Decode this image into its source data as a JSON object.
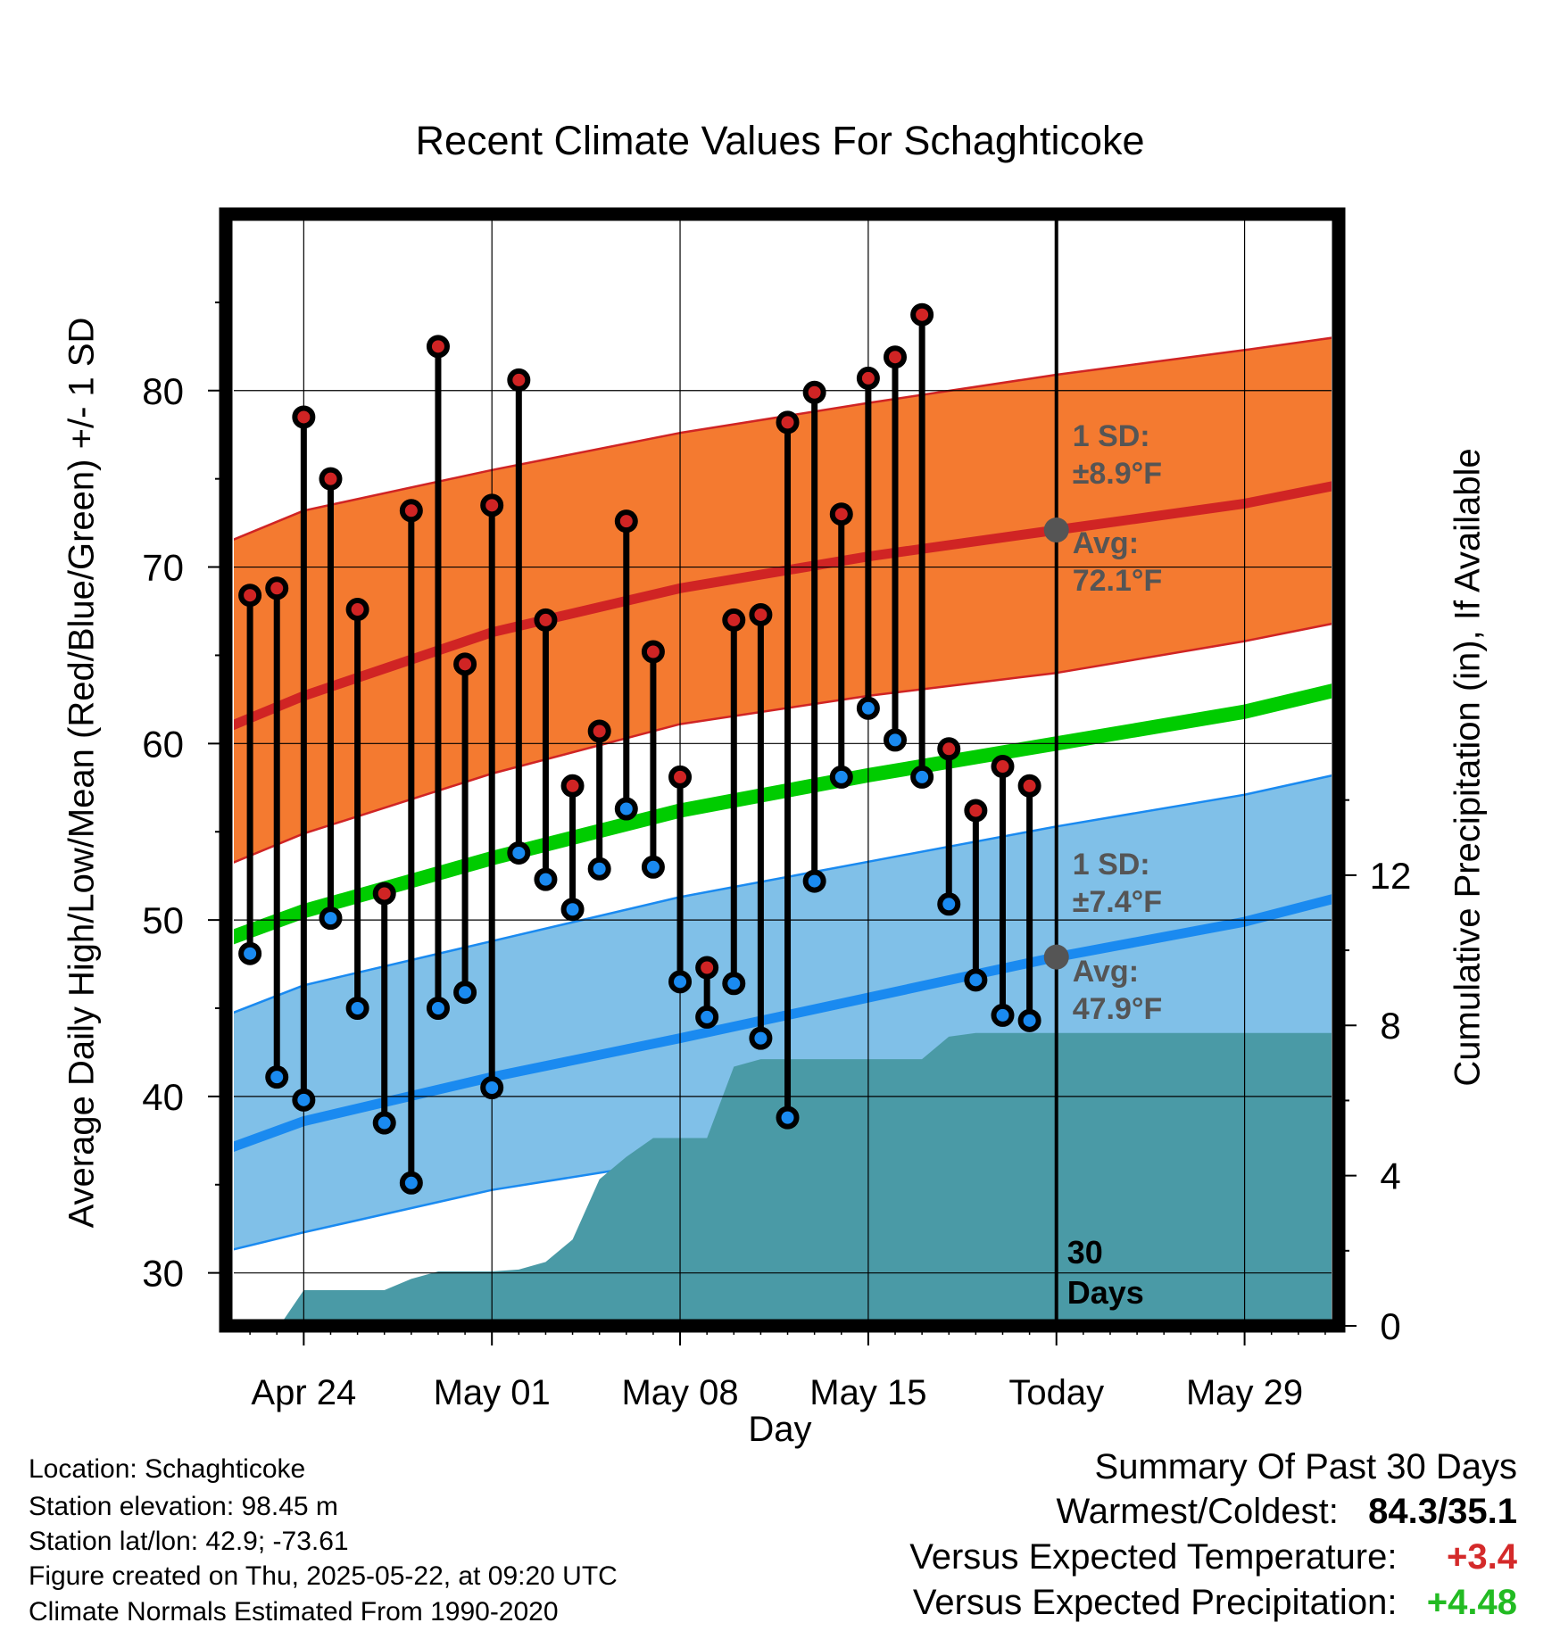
{
  "chart_data": {
    "type": "line",
    "title": "Recent Climate Values For Schaghticoke",
    "xlabel": "Day",
    "ylabel": "Average Daily High/Low/Mean (Red/Blue/Green) +/- 1 SD",
    "y2label": "Cumulative Precipitation (in), If Available",
    "ylim": [
      27,
      90
    ],
    "y2lim": [
      0,
      29.6
    ],
    "yticks": [
      "30",
      "40",
      "50",
      "60",
      "70",
      "80"
    ],
    "y2ticks": [
      "0",
      "4",
      "8",
      "12"
    ],
    "xticks": [
      {
        "day": 2,
        "label": "Apr 24"
      },
      {
        "day": 9,
        "label": "May 01"
      },
      {
        "day": 16,
        "label": "May 08"
      },
      {
        "day": 23,
        "label": "May 15"
      },
      {
        "day": 30,
        "label": "Today"
      },
      {
        "day": 37,
        "label": "May 29"
      }
    ],
    "x_day_zero": "Apr 22",
    "xlim": [
      -0.9,
      40.5
    ],
    "today_day": 30,
    "today_label": [
      "30",
      "Days"
    ],
    "normals": {
      "days": [
        -0.7,
        2,
        9,
        16,
        23,
        30,
        37,
        40.3
      ],
      "high_avg": [
        61.0,
        62.7,
        66.3,
        68.8,
        70.6,
        72.1,
        73.6,
        74.6
      ],
      "high_upper": [
        71.5,
        73.2,
        75.5,
        77.6,
        79.3,
        80.9,
        82.3,
        83.0
      ],
      "high_lower": [
        53.2,
        54.9,
        58.3,
        61.1,
        62.7,
        64.0,
        65.8,
        66.8
      ],
      "low_avg": [
        37.1,
        38.6,
        41.1,
        43.3,
        45.6,
        47.9,
        49.9,
        51.2
      ],
      "low_upper": [
        44.7,
        46.3,
        48.8,
        51.3,
        53.3,
        55.3,
        57.1,
        58.2
      ],
      "low_lower": [
        31.3,
        32.3,
        34.7,
        36.4,
        37.9,
        39.8,
        41.5,
        42.5
      ],
      "mean_avg": [
        49.0,
        50.5,
        53.5,
        56.2,
        58.2,
        60.0,
        61.8,
        63.0
      ]
    },
    "daily": [
      {
        "day": 0,
        "high": 68.4,
        "low": 48.1
      },
      {
        "day": 1,
        "high": 68.8,
        "low": 41.1
      },
      {
        "day": 2,
        "high": 78.5,
        "low": 39.8
      },
      {
        "day": 3,
        "high": 75.0,
        "low": 50.1
      },
      {
        "day": 4,
        "high": 67.6,
        "low": 45.0
      },
      {
        "day": 5,
        "high": 51.5,
        "low": 38.5
      },
      {
        "day": 6,
        "high": 73.2,
        "low": 35.1
      },
      {
        "day": 7,
        "high": 82.5,
        "low": 45.0
      },
      {
        "day": 8,
        "high": 64.5,
        "low": 45.9
      },
      {
        "day": 9,
        "high": 73.5,
        "low": 40.5
      },
      {
        "day": 10,
        "high": 80.6,
        "low": 53.8
      },
      {
        "day": 11,
        "high": 67.0,
        "low": 52.3
      },
      {
        "day": 12,
        "high": 57.6,
        "low": 50.6
      },
      {
        "day": 13,
        "high": 60.7,
        "low": 52.9
      },
      {
        "day": 14,
        "high": 72.6,
        "low": 56.3
      },
      {
        "day": 15,
        "high": 65.2,
        "low": 53.0
      },
      {
        "day": 16,
        "high": 58.1,
        "low": 46.5
      },
      {
        "day": 17,
        "high": 47.3,
        "low": 44.5
      },
      {
        "day": 18,
        "high": 67.0,
        "low": 46.4
      },
      {
        "day": 19,
        "high": 67.3,
        "low": 43.3
      },
      {
        "day": 20,
        "high": 78.2,
        "low": 38.8
      },
      {
        "day": 21,
        "high": 79.9,
        "low": 52.2
      },
      {
        "day": 22,
        "high": 73.0,
        "low": 58.1
      },
      {
        "day": 23,
        "high": 80.7,
        "low": 62.0
      },
      {
        "day": 24,
        "high": 81.9,
        "low": 60.2
      },
      {
        "day": 25,
        "high": 84.3,
        "low": 58.1
      },
      {
        "day": 26,
        "high": 59.7,
        "low": 50.9
      },
      {
        "day": 27,
        "high": 56.2,
        "low": 46.6
      },
      {
        "day": 28,
        "high": 58.7,
        "low": 44.6
      },
      {
        "day": 29,
        "high": 57.6,
        "low": 44.3
      }
    ],
    "precip": {
      "days": [
        1.1,
        2,
        3,
        4,
        5,
        6,
        7,
        8,
        9,
        10,
        11,
        12,
        13,
        14,
        15,
        16,
        17,
        18,
        19,
        20,
        21,
        22,
        23,
        24,
        25,
        26,
        27,
        28,
        29,
        30,
        40.3
      ],
      "values": [
        0.0,
        0.95,
        0.95,
        0.95,
        0.95,
        1.25,
        1.45,
        1.45,
        1.45,
        1.5,
        1.7,
        2.3,
        3.9,
        4.5,
        5.0,
        5.0,
        5.0,
        6.9,
        7.1,
        7.1,
        7.1,
        7.1,
        7.1,
        7.1,
        7.1,
        7.7,
        7.8,
        7.8,
        7.8,
        7.8,
        7.8
      ]
    },
    "high_sd_label": [
      "1 SD:",
      "±8.9°F"
    ],
    "high_avg_label": [
      "Avg:",
      "72.1°F"
    ],
    "low_sd_label": [
      "1 SD:",
      "±7.4°F"
    ],
    "low_avg_label": [
      "Avg:",
      "47.9°F"
    ],
    "today_high_avg": 72.1,
    "today_low_avg": 47.9,
    "colors": {
      "high_band": "#f47a30",
      "high_line": "#d02424",
      "low_band": "#80c0e8",
      "low_line": "#1a8af0",
      "mean_line": "#00cc00",
      "precip": "#4a9aa6",
      "high_dot": "#d02424",
      "low_dot": "#1a8af0",
      "annotation": "#555555"
    }
  },
  "info": {
    "location": "Location: Schaghticoke",
    "elevation": "Station elevation: 98.45 m",
    "latlon": "Station lat/lon: 42.9; -73.61",
    "created": "Figure created on Thu, 2025-05-22, at 09:20 UTC",
    "normals": "Climate Normals Estimated From 1990-2020"
  },
  "summary": {
    "heading": "Summary Of Past 30 Days",
    "warm_cold_label": "Warmest/Coldest:",
    "warm_cold_value": "84.3/35.1",
    "temp_label": "Versus Expected Temperature:",
    "temp_value": "+3.4",
    "temp_color": "#d42a2a",
    "precip_label": "Versus Expected Precipitation:",
    "precip_value": "+4.48",
    "precip_color": "#22bb22"
  }
}
